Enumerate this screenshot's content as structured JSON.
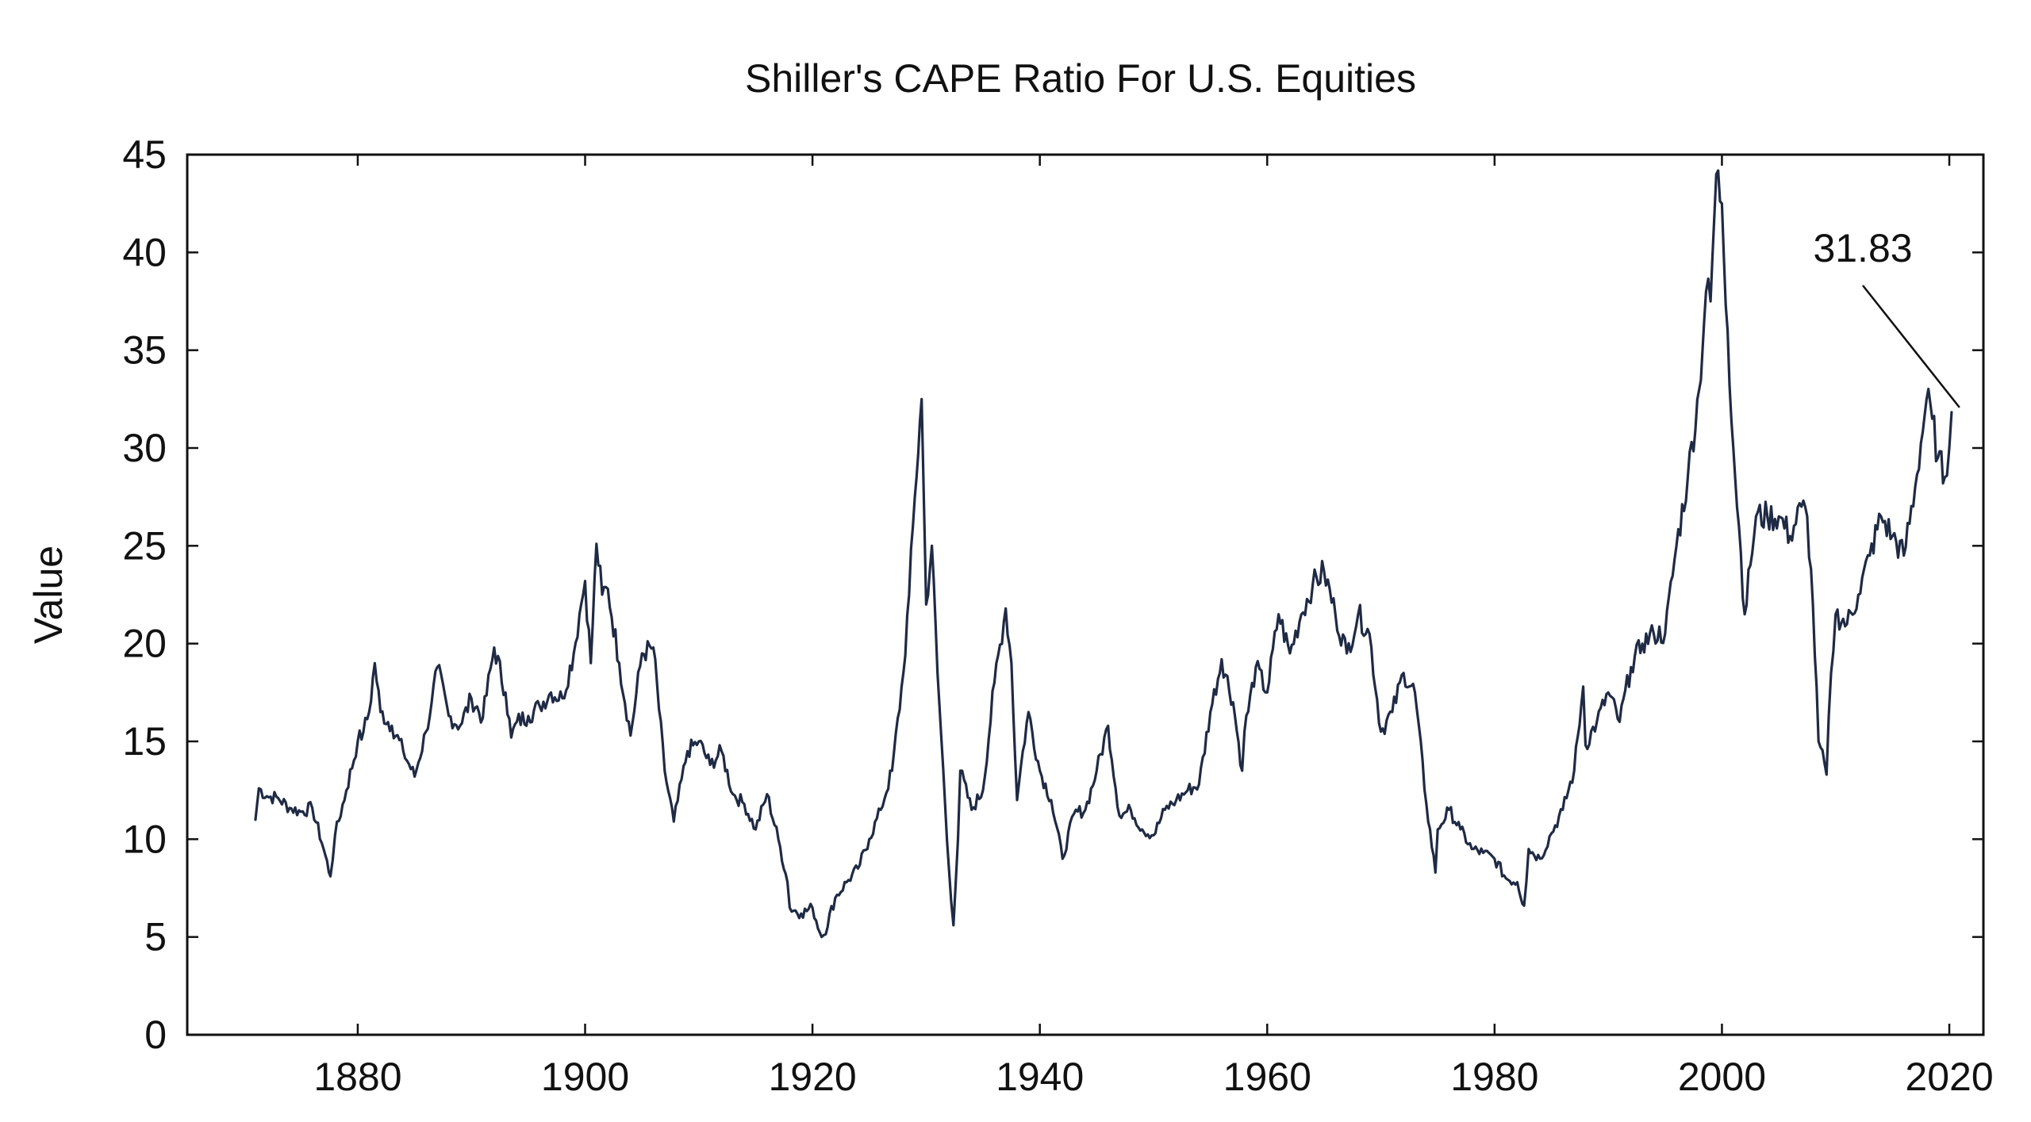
{
  "chart_data": {
    "type": "line",
    "title": "Shiller's CAPE Ratio For U.S. Equities",
    "xlabel": "",
    "ylabel": "Value",
    "xlim": [
      1865,
      2023
    ],
    "ylim": [
      0,
      45
    ],
    "x_ticks": [
      1880,
      1900,
      1920,
      1940,
      1960,
      1980,
      2000,
      2020
    ],
    "y_ticks": [
      0,
      5,
      10,
      15,
      20,
      25,
      30,
      35,
      40,
      45
    ],
    "grid": false,
    "line_color": "#1f2a44",
    "annotation": {
      "text": "31.83",
      "x": 2020.2,
      "y": 31.83
    },
    "series": [
      {
        "name": "CAPE",
        "x": [
          1871,
          1871.3,
          1872,
          1873,
          1874,
          1875,
          1876,
          1877,
          1877.6,
          1878,
          1879,
          1880,
          1880.5,
          1881,
          1881.5,
          1882,
          1883,
          1884,
          1885,
          1886,
          1886.5,
          1887,
          1888,
          1889,
          1890,
          1891,
          1892,
          1893,
          1893.5,
          1894,
          1895,
          1896,
          1897,
          1898,
          1899,
          1899.5,
          1900,
          1900.5,
          1901,
          1901.5,
          1902,
          1903,
          1904,
          1905,
          1906,
          1907,
          1907.8,
          1909,
          1910,
          1911,
          1912,
          1913,
          1914,
          1915,
          1916,
          1917,
          1917.8,
          1918,
          1919,
          1920,
          1920.8,
          1921,
          1922,
          1923,
          1924,
          1925,
          1926,
          1927,
          1928,
          1928.5,
          1929,
          1929.6,
          1930,
          1930.5,
          1931,
          1932,
          1932.4,
          1932.8,
          1933,
          1934,
          1935,
          1936,
          1937,
          1937.5,
          1938,
          1938.5,
          1939,
          1940,
          1941,
          1942,
          1943,
          1944,
          1945,
          1946,
          1947,
          1948,
          1949,
          1950,
          1951,
          1952,
          1953,
          1954,
          1955,
          1956,
          1957,
          1957.8,
          1958,
          1959,
          1960,
          1961,
          1962,
          1963,
          1964,
          1965,
          1966,
          1967,
          1968,
          1969,
          1970,
          1971,
          1972,
          1973,
          1974,
          1974.8,
          1975,
          1976,
          1977,
          1978,
          1979,
          1980,
          1981,
          1982,
          1982.6,
          1983,
          1984,
          1985,
          1986,
          1987,
          1987.8,
          1988,
          1989,
          1990,
          1991,
          1992,
          1993,
          1994,
          1995,
          1996,
          1997,
          1998,
          1998.6,
          1999,
          1999.5,
          2000,
          2000.5,
          2001,
          2001.5,
          2002,
          2002.5,
          2003,
          2004,
          2005,
          2006,
          2007,
          2007.5,
          2008,
          2008.5,
          2009.2,
          2009.6,
          2010,
          2011,
          2012,
          2013,
          2014,
          2015,
          2016,
          2017,
          2018,
          2018.5,
          2019,
          2019.6,
          2020,
          2020.2
        ],
        "values": [
          11,
          12.6,
          12.2,
          12.1,
          11.6,
          11.4,
          11.6,
          9.5,
          8.1,
          10.2,
          12.5,
          15,
          15.5,
          16.5,
          19,
          16.5,
          15.8,
          14.5,
          13.2,
          15.5,
          17,
          18.8,
          16.3,
          15.8,
          17.2,
          16.2,
          19.8,
          17.5,
          15.2,
          16,
          16.3,
          16.8,
          17.5,
          17.2,
          19.5,
          21.5,
          23.2,
          19,
          25.1,
          22.5,
          22.8,
          19,
          15.3,
          19.5,
          19.8,
          13.5,
          10.9,
          14.5,
          15,
          13.8,
          14.5,
          12.3,
          11.8,
          10.5,
          12.3,
          10,
          7.8,
          6.5,
          6.2,
          6.5,
          5,
          5.1,
          7,
          7.8,
          8.5,
          10,
          11.5,
          13.5,
          18.5,
          22.5,
          27.5,
          32.5,
          22,
          25,
          18.5,
          8.5,
          5.6,
          10,
          13.5,
          11.5,
          12.5,
          18,
          21.8,
          19,
          12,
          14.5,
          16.5,
          13.5,
          12,
          9,
          11.3,
          11.5,
          13.5,
          15.8,
          11.2,
          11.5,
          10.5,
          10.2,
          11.5,
          12,
          12.5,
          12.8,
          16.5,
          19.2,
          17,
          13.5,
          15.5,
          18.8,
          17.5,
          21.5,
          19.5,
          21.5,
          23,
          23.7,
          21.5,
          19.5,
          21.5,
          20.5,
          15.5,
          16.5,
          18.5,
          17.5,
          11.8,
          8.3,
          10.5,
          11.5,
          10.5,
          9.5,
          9.3,
          9,
          8,
          7.8,
          6.6,
          9.5,
          9,
          10.3,
          11.5,
          13.5,
          17.8,
          14.8,
          16,
          17.5,
          16,
          18.8,
          20,
          20.5,
          20.5,
          25,
          28.5,
          33,
          38,
          37.5,
          44,
          42.5,
          36,
          30,
          26,
          21.5,
          24,
          26.5,
          26.5,
          26.5,
          25.5,
          27,
          26.5,
          22,
          15,
          13.3,
          18.5,
          21.5,
          21,
          22.5,
          24.5,
          26.5,
          25.5,
          24.5,
          28,
          32.5,
          31.5,
          29.5,
          28.5,
          30,
          31.83
        ]
      }
    ]
  }
}
